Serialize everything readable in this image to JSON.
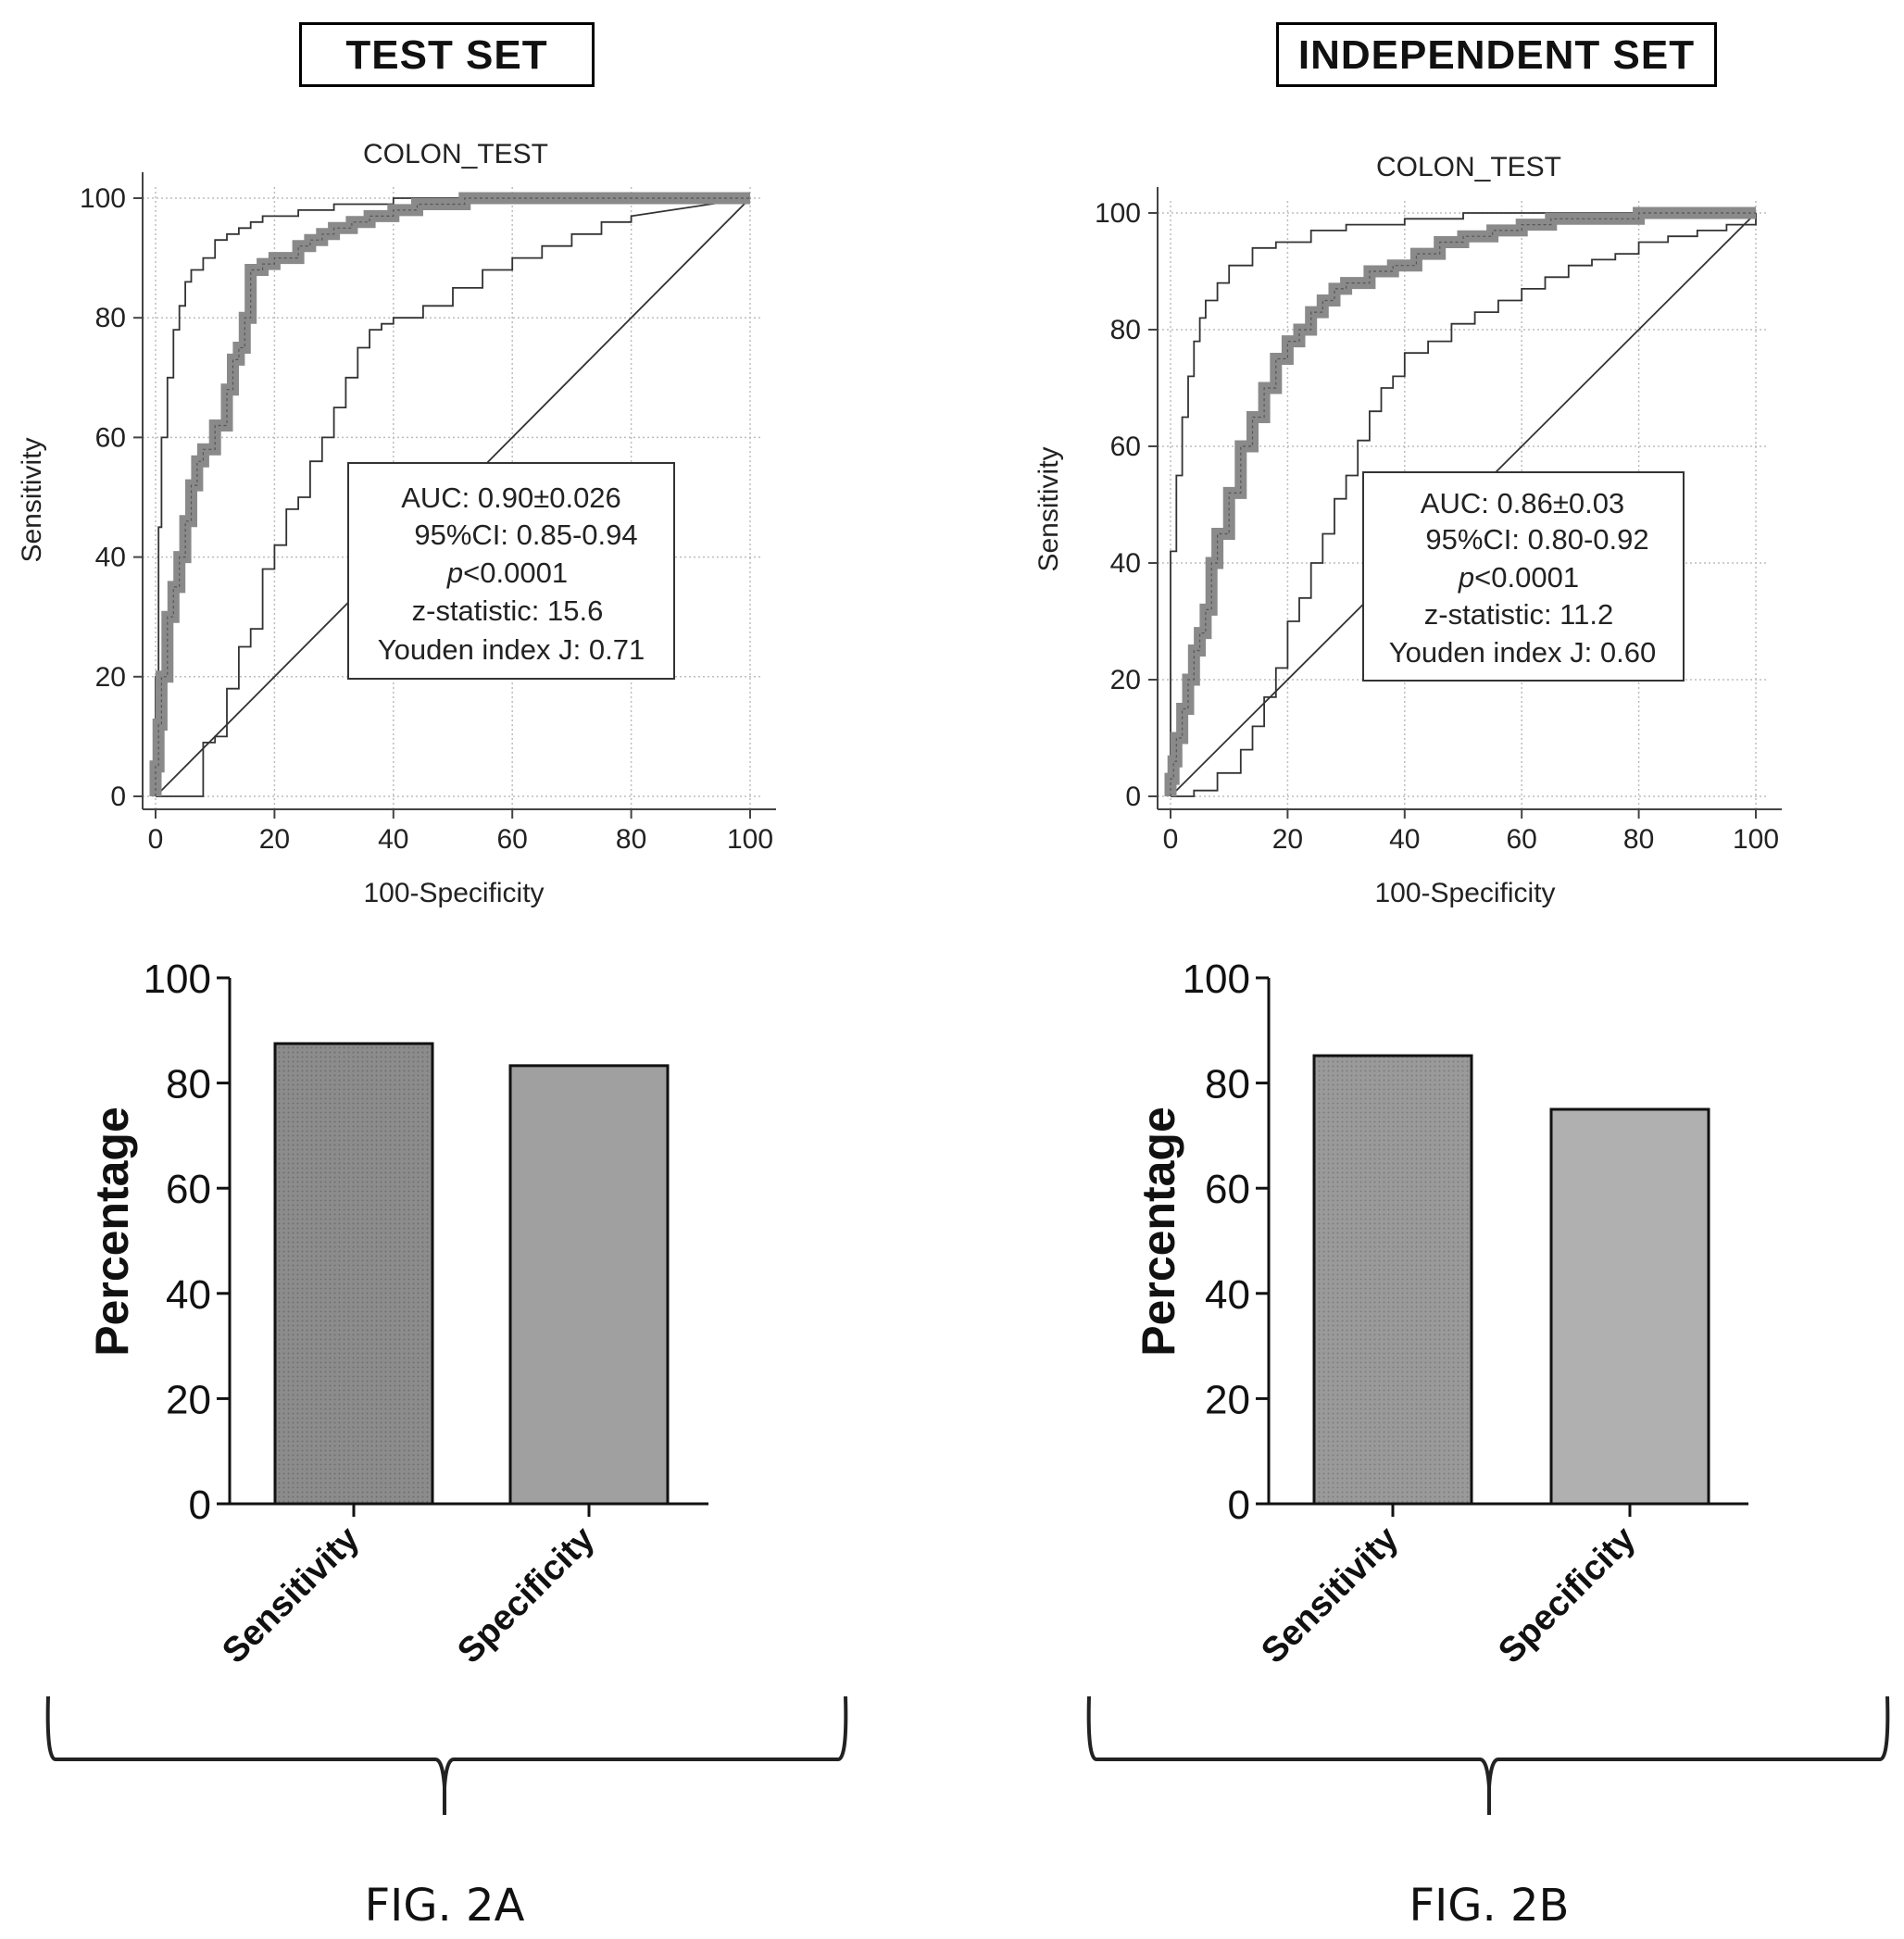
{
  "panels": [
    {
      "id": "A",
      "set_title": "TEST SET",
      "figure_label": "FIG. 2A",
      "roc": {
        "title": "COLON_TEST",
        "xlabel": "100-Specificity",
        "ylabel": "Sensitivity",
        "x_ticks": [
          "0",
          "20",
          "40",
          "60",
          "80",
          "100"
        ],
        "y_ticks": [
          "0",
          "20",
          "40",
          "60",
          "80",
          "100"
        ],
        "stats": {
          "auc": "AUC: 0.90±0.026",
          "ci": "95%CI: 0.85-0.94",
          "p_italic": "p",
          "p_rest": "<0.0001",
          "z": "z-statistic: 15.6",
          "youden": "Youden index J: 0.71"
        }
      },
      "bar": {
        "ylabel": "Percentage",
        "y_ticks": [
          "0",
          "20",
          "40",
          "60",
          "80",
          "100"
        ],
        "categories": [
          "Sensitivity",
          "Specificity"
        ]
      }
    },
    {
      "id": "B",
      "set_title": "INDEPENDENT SET",
      "figure_label": "FIG. 2B",
      "roc": {
        "title": "COLON_TEST",
        "xlabel": "100-Specificity",
        "ylabel": "Sensitivity",
        "x_ticks": [
          "0",
          "20",
          "40",
          "60",
          "80",
          "100"
        ],
        "y_ticks": [
          "0",
          "20",
          "40",
          "60",
          "80",
          "100"
        ],
        "stats": {
          "auc": "AUC: 0.86±0.03",
          "ci": "95%CI: 0.80-0.92",
          "p_italic": "p",
          "p_rest": "<0.0001",
          "z": "z-statistic: 11.2",
          "youden": "Youden index J: 0.60"
        }
      },
      "bar": {
        "ylabel": "Percentage",
        "y_ticks": [
          "0",
          "20",
          "40",
          "60",
          "80",
          "100"
        ],
        "categories": [
          "Sensitivity",
          "Specificity"
        ]
      }
    }
  ],
  "chart_data": [
    {
      "type": "line",
      "title": "COLON_TEST",
      "xlabel": "100-Specificity",
      "ylabel": "Sensitivity",
      "xlim": [
        0,
        100
      ],
      "ylim": [
        0,
        100
      ],
      "grid": true,
      "series": [
        {
          "role": "roc",
          "x": [
            0,
            0,
            0.5,
            0.5,
            1,
            1,
            2,
            2,
            3,
            3,
            4,
            4,
            5,
            5,
            6,
            6,
            7,
            7,
            8,
            8,
            10,
            10,
            12,
            12,
            13,
            13,
            14,
            14,
            15,
            15,
            16,
            16,
            18,
            18,
            20,
            20,
            22,
            22,
            24,
            24,
            26,
            26,
            28,
            28,
            30,
            30,
            33,
            33,
            36,
            36,
            40,
            40,
            44,
            44,
            48,
            48,
            52,
            52,
            55,
            55,
            100
          ],
          "y": [
            0,
            5,
            5,
            12,
            12,
            20,
            20,
            30,
            30,
            35,
            35,
            40,
            40,
            46,
            46,
            52,
            52,
            56,
            56,
            58,
            58,
            62,
            62,
            68,
            68,
            73,
            73,
            75,
            75,
            80,
            80,
            88,
            88,
            89,
            89,
            90,
            90,
            90,
            90,
            92,
            92,
            93,
            93,
            94,
            94,
            95,
            95,
            96,
            96,
            97,
            97,
            98,
            98,
            99,
            99,
            99,
            99,
            100,
            100,
            100,
            100
          ]
        },
        {
          "role": "upper_ci",
          "x": [
            0,
            0,
            0.5,
            0.5,
            1,
            1,
            2,
            2,
            3,
            3,
            4,
            4,
            5,
            5,
            6,
            6,
            8,
            8,
            10,
            10,
            12,
            12,
            14,
            14,
            16,
            16,
            18,
            18,
            24,
            24,
            30,
            30,
            40,
            40,
            50,
            50,
            60,
            60,
            100
          ],
          "y": [
            0,
            20,
            20,
            45,
            45,
            60,
            60,
            70,
            70,
            78,
            78,
            82,
            82,
            86,
            86,
            88,
            88,
            90,
            90,
            93,
            93,
            94,
            94,
            95,
            95,
            96,
            96,
            97,
            97,
            98,
            98,
            99,
            99,
            100,
            100,
            100,
            100,
            100,
            100
          ]
        },
        {
          "role": "lower_ci",
          "x": [
            0,
            8,
            8,
            10,
            10,
            12,
            12,
            14,
            14,
            16,
            16,
            18,
            18,
            20,
            20,
            22,
            22,
            24,
            24,
            26,
            26,
            28,
            28,
            30,
            30,
            32,
            32,
            34,
            34,
            36,
            36,
            38,
            38,
            40,
            40,
            45,
            45,
            50,
            50,
            55,
            55,
            60,
            60,
            65,
            65,
            70,
            70,
            75,
            75,
            80,
            80,
            100
          ],
          "y": [
            0,
            0,
            9,
            9,
            10,
            10,
            18,
            18,
            25,
            25,
            28,
            28,
            38,
            38,
            42,
            42,
            48,
            48,
            50,
            50,
            56,
            56,
            60,
            60,
            65,
            65,
            70,
            70,
            75,
            75,
            78,
            78,
            79,
            79,
            80,
            80,
            82,
            82,
            85,
            85,
            88,
            88,
            90,
            90,
            92,
            92,
            94,
            94,
            96,
            96,
            97,
            100
          ]
        },
        {
          "role": "reference",
          "x": [
            0,
            100
          ],
          "y": [
            0,
            100
          ]
        }
      ]
    },
    {
      "type": "line",
      "title": "COLON_TEST",
      "xlabel": "100-Specificity",
      "ylabel": "Sensitivity",
      "xlim": [
        0,
        100
      ],
      "ylim": [
        0,
        100
      ],
      "grid": true,
      "series": [
        {
          "role": "roc",
          "x": [
            0,
            0,
            0.5,
            0.5,
            1,
            1,
            2,
            2,
            3,
            3,
            4,
            4,
            5,
            5,
            6,
            6,
            7,
            7,
            8,
            8,
            10,
            10,
            12,
            12,
            14,
            14,
            16,
            16,
            18,
            18,
            20,
            20,
            22,
            22,
            24,
            24,
            26,
            26,
            28,
            28,
            30,
            30,
            34,
            34,
            38,
            38,
            42,
            42,
            46,
            46,
            50,
            50,
            55,
            55,
            60,
            60,
            65,
            65,
            70,
            70,
            80,
            80,
            90,
            90,
            100
          ],
          "y": [
            0,
            3,
            3,
            6,
            6,
            10,
            10,
            15,
            15,
            20,
            20,
            25,
            25,
            28,
            28,
            32,
            32,
            40,
            40,
            45,
            45,
            52,
            52,
            60,
            60,
            65,
            65,
            70,
            70,
            75,
            75,
            78,
            78,
            80,
            80,
            83,
            83,
            85,
            85,
            87,
            87,
            88,
            88,
            90,
            90,
            91,
            91,
            93,
            93,
            95,
            95,
            96,
            96,
            97,
            97,
            98,
            98,
            99,
            99,
            99,
            99,
            100,
            100,
            100,
            100
          ]
        },
        {
          "role": "upper_ci",
          "x": [
            0,
            0,
            1,
            1,
            2,
            2,
            3,
            3,
            4,
            4,
            5,
            5,
            6,
            6,
            8,
            8,
            10,
            10,
            14,
            14,
            18,
            18,
            24,
            24,
            30,
            30,
            40,
            40,
            50,
            50,
            100
          ],
          "y": [
            0,
            42,
            42,
            55,
            55,
            65,
            65,
            72,
            72,
            78,
            78,
            82,
            82,
            85,
            85,
            88,
            88,
            91,
            91,
            94,
            94,
            95,
            95,
            97,
            97,
            98,
            98,
            99,
            99,
            100,
            100
          ]
        },
        {
          "role": "lower_ci",
          "x": [
            0,
            4,
            4,
            8,
            8,
            12,
            12,
            14,
            14,
            16,
            16,
            18,
            18,
            20,
            20,
            22,
            22,
            24,
            24,
            26,
            26,
            28,
            28,
            30,
            30,
            32,
            32,
            34,
            34,
            36,
            36,
            38,
            38,
            40,
            40,
            44,
            44,
            48,
            48,
            52,
            52,
            56,
            56,
            60,
            60,
            64,
            64,
            68,
            68,
            72,
            72,
            76,
            76,
            80,
            80,
            85,
            85,
            90,
            90,
            95,
            95,
            100,
            100
          ],
          "y": [
            0,
            0,
            1,
            1,
            4,
            4,
            8,
            8,
            12,
            12,
            17,
            17,
            22,
            22,
            30,
            30,
            34,
            34,
            40,
            40,
            45,
            45,
            51,
            51,
            55,
            55,
            61,
            61,
            66,
            66,
            70,
            70,
            72,
            72,
            76,
            76,
            78,
            78,
            81,
            81,
            83,
            83,
            85,
            85,
            87,
            87,
            89,
            89,
            91,
            91,
            92,
            92,
            93,
            93,
            95,
            95,
            96,
            96,
            97,
            97,
            98,
            98,
            100
          ]
        },
        {
          "role": "reference",
          "x": [
            0,
            100
          ],
          "y": [
            0,
            100
          ]
        }
      ]
    },
    {
      "type": "bar",
      "categories": [
        "Sensitivity",
        "Specificity"
      ],
      "values": [
        87.5,
        83.3
      ],
      "ylabel": "Percentage",
      "ylim": [
        0,
        100
      ]
    },
    {
      "type": "bar",
      "categories": [
        "Sensitivity",
        "Specificity"
      ],
      "values": [
        85.2,
        75.0
      ],
      "ylabel": "Percentage",
      "ylim": [
        0,
        100
      ]
    }
  ]
}
